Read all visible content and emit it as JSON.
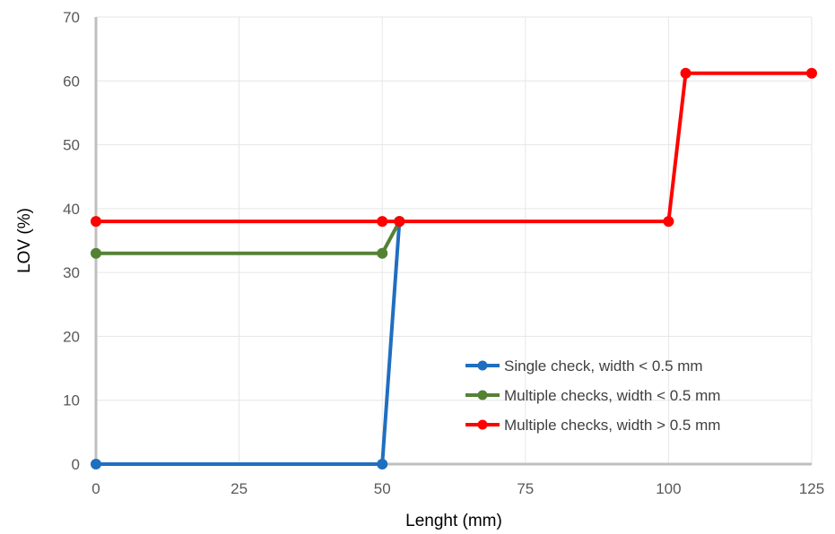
{
  "chart_data": {
    "type": "line",
    "xlabel": "Lenght  (mm)",
    "ylabel": "LOV  (%)",
    "xlim": [
      0,
      125
    ],
    "ylim": [
      0,
      70
    ],
    "xticks": [
      0,
      25,
      50,
      75,
      100,
      125
    ],
    "yticks": [
      0,
      10,
      20,
      30,
      40,
      50,
      60,
      70
    ],
    "grid": true,
    "legend_position": "bottom-right",
    "series": [
      {
        "name": "Single check, width < 0.5 mm",
        "color": "#1F6FBF",
        "x": [
          0,
          50,
          53
        ],
        "y": [
          0,
          0,
          38
        ]
      },
      {
        "name": "Multiple checks, width < 0.5 mm",
        "color": "#548235",
        "x": [
          0,
          50,
          53
        ],
        "y": [
          33,
          33,
          38
        ]
      },
      {
        "name": "Multiple checks, width > 0.5 mm",
        "color": "#FF0000",
        "x": [
          0,
          50,
          53,
          100,
          103,
          125
        ],
        "y": [
          38,
          38,
          38,
          38,
          61.2,
          61.2
        ]
      }
    ]
  }
}
